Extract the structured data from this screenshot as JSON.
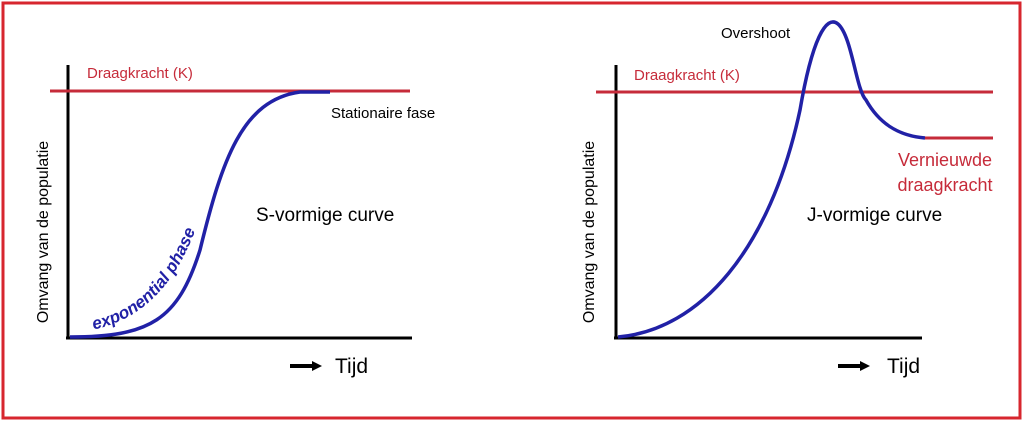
{
  "colors": {
    "frame": "#d7262e",
    "axis": "#000000",
    "capacity": "#c62b3a",
    "curve": "#2121a6",
    "text": "#000000"
  },
  "left_panel": {
    "capacity_label": "Draagkracht (K)",
    "stationary_label": "Stationaire fase",
    "curve_name": "S-vormige curve",
    "phase_label": "exponential phase",
    "y_axis_label": "Omvang van de populatie",
    "x_axis_label": "Tijd",
    "x_arrow_icon": "right-arrow-icon"
  },
  "right_panel": {
    "capacity_label": "Draagkracht (K)",
    "overshoot_label": "Overshoot",
    "new_capacity_line1": "Vernieuwde",
    "new_capacity_line2": "draagkracht",
    "curve_name": "J-vormige curve",
    "y_axis_label": "Omvang van de populatie",
    "x_axis_label": "Tijd",
    "x_arrow_icon": "right-arrow-icon"
  }
}
